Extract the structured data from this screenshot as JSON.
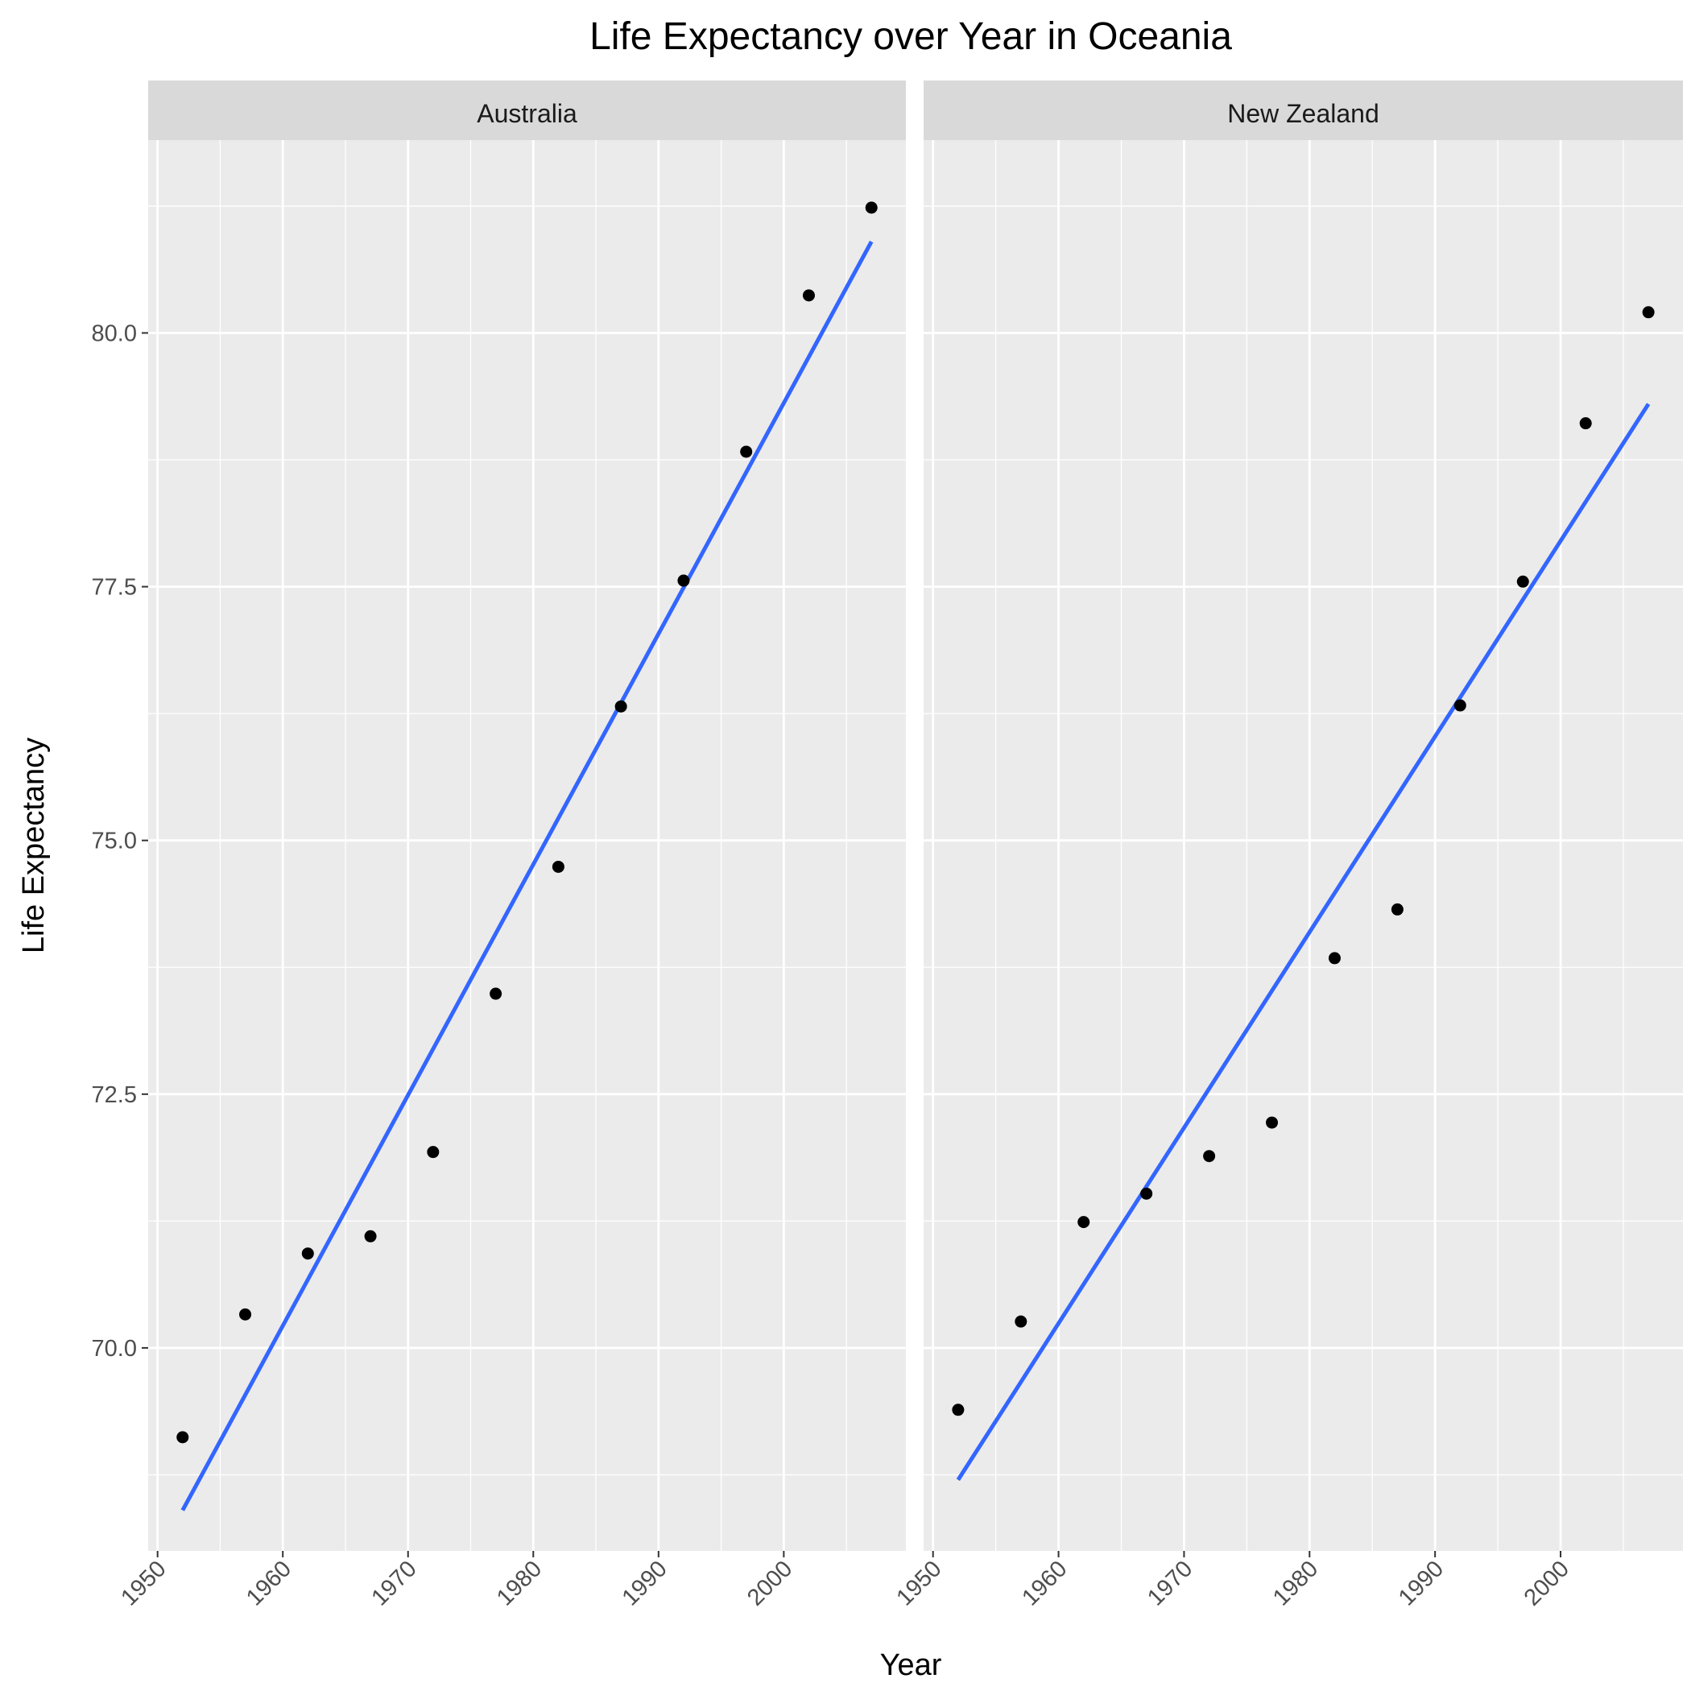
{
  "chart_data": {
    "type": "scatter",
    "title": "Life Expectancy over Year in Oceania",
    "xlabel": "Year",
    "ylabel": "Life Expectancy",
    "xlim": [
      1949.25,
      2009.75
    ],
    "ylim": [
      68.0,
      81.9
    ],
    "x_ticks": [
      1950,
      1960,
      1970,
      1980,
      1990,
      2000
    ],
    "y_ticks": [
      70.0,
      72.5,
      75.0,
      77.5,
      80.0
    ],
    "y_tick_labels": [
      "70.0",
      "72.5",
      "75.0",
      "77.5",
      "80.0"
    ],
    "grid": true,
    "panels": [
      {
        "name": "Australia",
        "x": [
          1952,
          1957,
          1962,
          1967,
          1972,
          1977,
          1982,
          1987,
          1992,
          1997,
          2002,
          2007
        ],
        "y": [
          69.12,
          70.33,
          70.93,
          71.1,
          71.93,
          73.49,
          74.74,
          76.32,
          77.56,
          78.83,
          80.37,
          81.235
        ],
        "fit": {
          "x": [
            1952,
            2007
          ],
          "y": [
            68.4,
            80.9
          ]
        }
      },
      {
        "name": "New Zealand",
        "x": [
          1952,
          1957,
          1962,
          1967,
          1972,
          1977,
          1982,
          1987,
          1992,
          1997,
          2002,
          2007
        ],
        "y": [
          69.39,
          70.26,
          71.24,
          71.52,
          71.89,
          72.22,
          73.84,
          74.32,
          76.33,
          77.55,
          79.11,
          80.204
        ],
        "fit": {
          "x": [
            1952,
            2007
          ],
          "y": [
            68.7,
            79.3
          ]
        }
      }
    ],
    "point_color": "#000000",
    "fit_color": "#3366FF",
    "panel_background": "#EBEBEB",
    "strip_background": "#D9D9D9",
    "grid_color": "#FFFFFF"
  }
}
